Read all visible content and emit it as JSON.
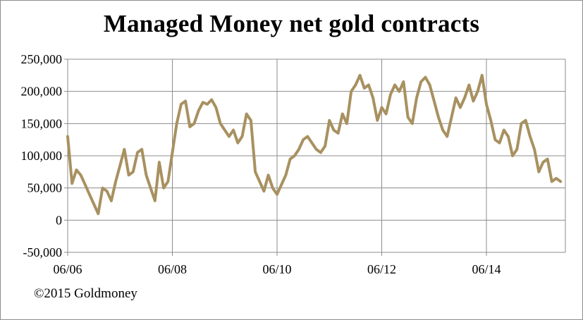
{
  "title": "Managed Money net gold contracts",
  "copyright": "©2015 Goldmoney",
  "colors": {
    "line": "#A89160",
    "grid": "#8c8c8c",
    "axis": "#8c8c8c"
  },
  "chart_data": {
    "type": "line",
    "title": "Managed Money net gold contracts",
    "xlabel": "",
    "ylabel": "",
    "xlim": [
      "2006-06",
      "2015-07"
    ],
    "ylim": [
      -50000,
      250000
    ],
    "y_ticks": [
      -50000,
      0,
      50000,
      100000,
      150000,
      200000,
      250000
    ],
    "y_tick_labels": [
      "-50,000",
      "0",
      "50,000",
      "100,000",
      "150,000",
      "200,000",
      "250,000"
    ],
    "x_ticks": [
      "2006-06",
      "2008-06",
      "2010-06",
      "2012-06",
      "2014-06"
    ],
    "x_tick_labels": [
      "06/06",
      "06/08",
      "06/10",
      "06/12",
      "06/14"
    ],
    "grid": {
      "horizontal": true,
      "vertical": true
    },
    "legend": "none",
    "series": [
      {
        "values": [
          [
            "2006-06",
            130000
          ],
          [
            "2006-07",
            57000
          ],
          [
            "2006-08",
            78000
          ],
          [
            "2006-09",
            70000
          ],
          [
            "2006-10",
            55000
          ],
          [
            "2006-11",
            40000
          ],
          [
            "2006-12",
            25000
          ],
          [
            "2007-01",
            10000
          ],
          [
            "2007-02",
            50000
          ],
          [
            "2007-03",
            45000
          ],
          [
            "2007-04",
            30000
          ],
          [
            "2007-05",
            60000
          ],
          [
            "2007-06",
            85000
          ],
          [
            "2007-07",
            110000
          ],
          [
            "2007-08",
            70000
          ],
          [
            "2007-09",
            75000
          ],
          [
            "2007-10",
            105000
          ],
          [
            "2007-11",
            110000
          ],
          [
            "2007-12",
            70000
          ],
          [
            "2008-01",
            50000
          ],
          [
            "2008-02",
            30000
          ],
          [
            "2008-03",
            90000
          ],
          [
            "2008-04",
            50000
          ],
          [
            "2008-05",
            60000
          ],
          [
            "2008-06",
            105000
          ],
          [
            "2008-07",
            150000
          ],
          [
            "2008-08",
            180000
          ],
          [
            "2008-09",
            185000
          ],
          [
            "2008-10",
            145000
          ],
          [
            "2008-11",
            150000
          ],
          [
            "2008-12",
            170000
          ],
          [
            "2009-01",
            183000
          ],
          [
            "2009-02",
            180000
          ],
          [
            "2009-03",
            187000
          ],
          [
            "2009-04",
            175000
          ],
          [
            "2009-05",
            150000
          ],
          [
            "2009-06",
            140000
          ],
          [
            "2009-07",
            130000
          ],
          [
            "2009-08",
            140000
          ],
          [
            "2009-09",
            120000
          ],
          [
            "2009-10",
            130000
          ],
          [
            "2009-11",
            165000
          ],
          [
            "2009-12",
            155000
          ],
          [
            "2010-01",
            75000
          ],
          [
            "2010-02",
            60000
          ],
          [
            "2010-03",
            45000
          ],
          [
            "2010-04",
            70000
          ],
          [
            "2010-05",
            50000
          ],
          [
            "2010-06",
            40000
          ],
          [
            "2010-07",
            55000
          ],
          [
            "2010-08",
            70000
          ],
          [
            "2010-09",
            95000
          ],
          [
            "2010-10",
            100000
          ],
          [
            "2010-11",
            110000
          ],
          [
            "2010-12",
            125000
          ],
          [
            "2011-01",
            130000
          ],
          [
            "2011-02",
            120000
          ],
          [
            "2011-03",
            110000
          ],
          [
            "2011-04",
            105000
          ],
          [
            "2011-05",
            115000
          ],
          [
            "2011-06",
            155000
          ],
          [
            "2011-07",
            140000
          ],
          [
            "2011-08",
            135000
          ],
          [
            "2011-09",
            165000
          ],
          [
            "2011-10",
            150000
          ],
          [
            "2011-11",
            200000
          ],
          [
            "2011-12",
            210000
          ],
          [
            "2012-01",
            225000
          ],
          [
            "2012-02",
            205000
          ],
          [
            "2012-03",
            210000
          ],
          [
            "2012-04",
            190000
          ],
          [
            "2012-05",
            155000
          ],
          [
            "2012-06",
            175000
          ],
          [
            "2012-07",
            165000
          ],
          [
            "2012-08",
            195000
          ],
          [
            "2012-09",
            210000
          ],
          [
            "2012-10",
            200000
          ],
          [
            "2012-11",
            215000
          ],
          [
            "2012-12",
            160000
          ],
          [
            "2013-01",
            150000
          ],
          [
            "2013-02",
            190000
          ],
          [
            "2013-03",
            215000
          ],
          [
            "2013-04",
            222000
          ],
          [
            "2013-05",
            210000
          ],
          [
            "2013-06",
            185000
          ],
          [
            "2013-07",
            160000
          ],
          [
            "2013-08",
            140000
          ],
          [
            "2013-09",
            130000
          ],
          [
            "2013-10",
            160000
          ],
          [
            "2013-11",
            190000
          ],
          [
            "2013-12",
            175000
          ],
          [
            "2014-01",
            190000
          ],
          [
            "2014-02",
            210000
          ],
          [
            "2014-03",
            185000
          ],
          [
            "2014-04",
            200000
          ],
          [
            "2014-05",
            225000
          ],
          [
            "2014-06",
            180000
          ],
          [
            "2014-07",
            155000
          ],
          [
            "2014-08",
            125000
          ],
          [
            "2014-09",
            120000
          ],
          [
            "2014-10",
            140000
          ],
          [
            "2014-11",
            130000
          ],
          [
            "2014-12",
            100000
          ],
          [
            "2015-01",
            110000
          ],
          [
            "2015-02",
            150000
          ],
          [
            "2015-03",
            155000
          ],
          [
            "2015-04",
            130000
          ],
          [
            "2015-05",
            110000
          ],
          [
            "2015-06",
            75000
          ],
          [
            "2015-07",
            90000
          ],
          [
            "2015-08",
            95000
          ],
          [
            "2015-09",
            60000
          ],
          [
            "2015-10",
            65000
          ],
          [
            "2015-11",
            60000
          ]
        ],
        "values_note_unused": "",
        "by_month": true
      }
    ]
  }
}
